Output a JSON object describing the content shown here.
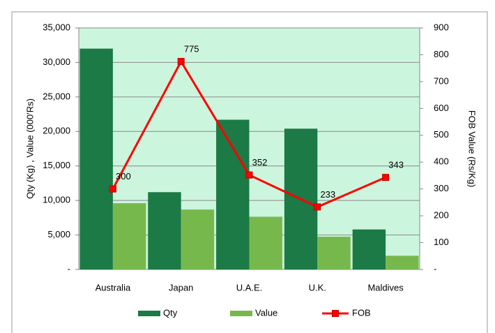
{
  "chart_data": {
    "type": "bar",
    "categories": [
      "Australia",
      "Japan",
      "U.A.E.",
      "U.K.",
      "Maldives"
    ],
    "series": [
      {
        "name": "Qty",
        "color": "#1b7a45",
        "values": [
          32000,
          11200,
          21700,
          20400,
          5800
        ]
      },
      {
        "name": "Value",
        "color": "#77b84c",
        "values": [
          9600,
          8680,
          7640,
          4750,
          1990
        ]
      },
      {
        "name": "FOB",
        "type": "line",
        "axis": "y2",
        "color": "#ff0000",
        "values": [
          300,
          775,
          352,
          233,
          343
        ]
      }
    ],
    "ylabel": "Qty  (Kg) , Value (000'Rs)",
    "y2label": "FOB Value (Rs/Kg)",
    "ylim": [
      0,
      35000
    ],
    "yticks": [
      {
        "value": 0,
        "label": "-"
      },
      {
        "value": 5000,
        "label": "5,000"
      },
      {
        "value": 10000,
        "label": "10,000"
      },
      {
        "value": 15000,
        "label": "15,000"
      },
      {
        "value": 20000,
        "label": "20,000"
      },
      {
        "value": 25000,
        "label": "25,000"
      },
      {
        "value": 30000,
        "label": "30,000"
      },
      {
        "value": 35000,
        "label": "35,000"
      }
    ],
    "y2lim": [
      0,
      900
    ],
    "y2ticks": [
      {
        "value": 0,
        "label": "-"
      },
      100,
      200,
      300,
      400,
      500,
      600,
      700,
      800,
      900
    ],
    "grid": true,
    "plot_background": "#ccf5dd",
    "legend": "bottom"
  }
}
